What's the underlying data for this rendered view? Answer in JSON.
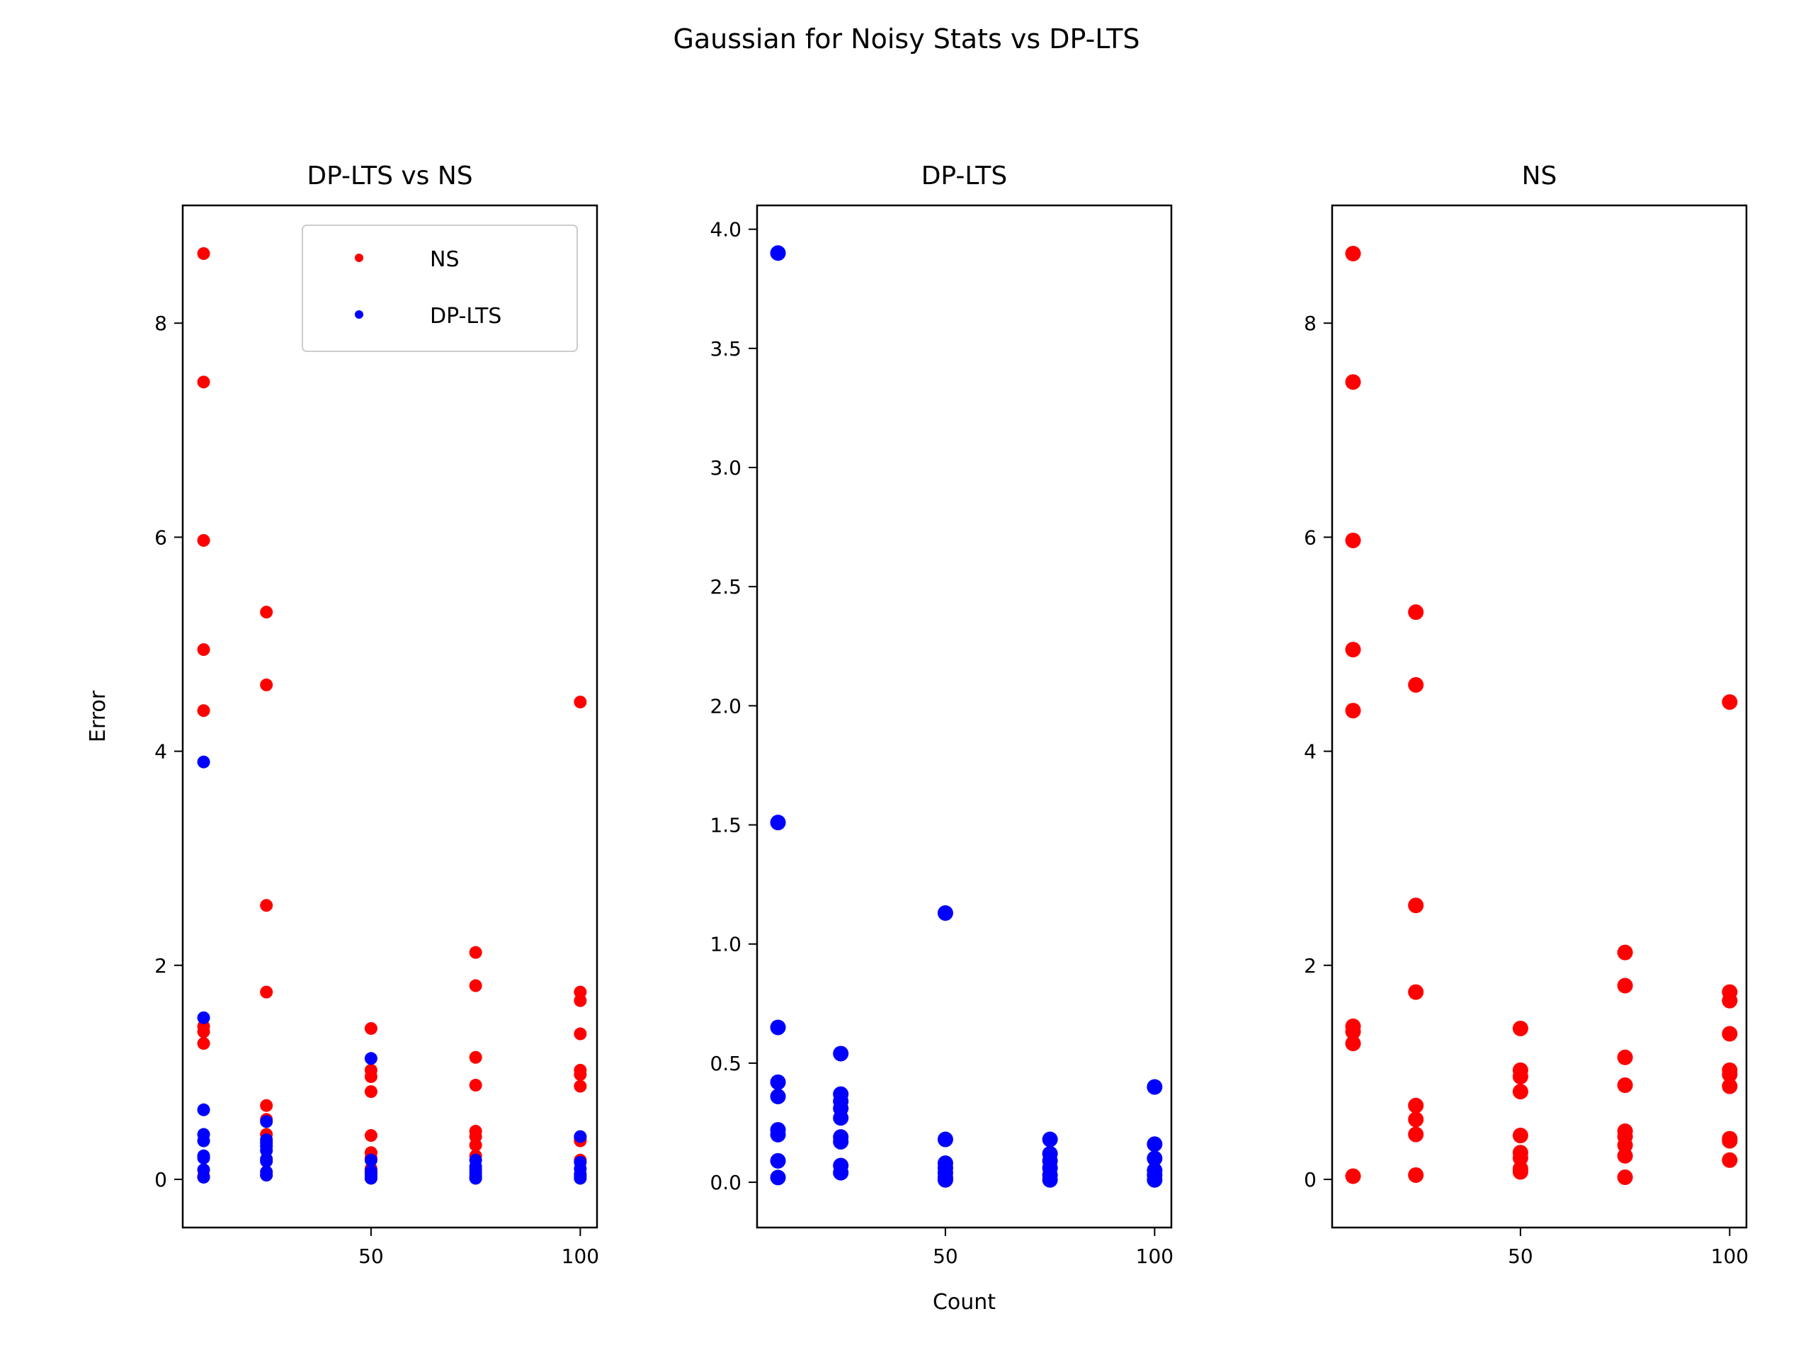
{
  "suptitle": "Gaussian for Noisy Stats vs DP-LTS",
  "colors": {
    "ns": "#ff0000",
    "dplts": "#0000ff"
  },
  "chart_data": [
    {
      "type": "scatter",
      "title": "DP-LTS vs NS",
      "xlabel": "",
      "ylabel": "Error",
      "xlim": [
        5,
        104
      ],
      "ylim": [
        -0.45,
        9.1
      ],
      "xticks": [
        50,
        100
      ],
      "yticks": [
        0,
        2,
        4,
        6,
        8
      ],
      "legend": {
        "position": "top-right",
        "entries": [
          "NS",
          "DP-LTS"
        ]
      },
      "series": [
        {
          "name": "NS",
          "color": "#ff0000",
          "points": [
            [
              10,
              8.65
            ],
            [
              10,
              7.45
            ],
            [
              10,
              5.97
            ],
            [
              10,
              4.95
            ],
            [
              10,
              4.38
            ],
            [
              10,
              1.43
            ],
            [
              10,
              1.38
            ],
            [
              10,
              1.27
            ],
            [
              10,
              0.03
            ],
            [
              25,
              5.3
            ],
            [
              25,
              4.62
            ],
            [
              25,
              2.56
            ],
            [
              25,
              1.75
            ],
            [
              25,
              0.69
            ],
            [
              25,
              0.56
            ],
            [
              25,
              0.42
            ],
            [
              25,
              0.04
            ],
            [
              50,
              1.41
            ],
            [
              50,
              1.02
            ],
            [
              50,
              0.96
            ],
            [
              50,
              0.82
            ],
            [
              50,
              0.41
            ],
            [
              50,
              0.25
            ],
            [
              50,
              0.2
            ],
            [
              50,
              0.1
            ],
            [
              50,
              0.07
            ],
            [
              75,
              2.12
            ],
            [
              75,
              1.81
            ],
            [
              75,
              1.14
            ],
            [
              75,
              0.88
            ],
            [
              75,
              0.45
            ],
            [
              75,
              0.4
            ],
            [
              75,
              0.32
            ],
            [
              75,
              0.22
            ],
            [
              75,
              0.02
            ],
            [
              100,
              4.46
            ],
            [
              100,
              1.75
            ],
            [
              100,
              1.67
            ],
            [
              100,
              1.36
            ],
            [
              100,
              1.02
            ],
            [
              100,
              0.98
            ],
            [
              100,
              0.87
            ],
            [
              100,
              0.38
            ],
            [
              100,
              0.36
            ],
            [
              100,
              0.18
            ]
          ]
        },
        {
          "name": "DP-LTS",
          "color": "#0000ff",
          "points": [
            [
              10,
              3.9
            ],
            [
              10,
              1.51
            ],
            [
              10,
              0.65
            ],
            [
              10,
              0.42
            ],
            [
              10,
              0.36
            ],
            [
              10,
              0.22
            ],
            [
              10,
              0.2
            ],
            [
              10,
              0.09
            ],
            [
              10,
              0.02
            ],
            [
              25,
              0.54
            ],
            [
              25,
              0.37
            ],
            [
              25,
              0.34
            ],
            [
              25,
              0.31
            ],
            [
              25,
              0.27
            ],
            [
              25,
              0.19
            ],
            [
              25,
              0.17
            ],
            [
              25,
              0.07
            ],
            [
              25,
              0.04
            ],
            [
              50,
              1.13
            ],
            [
              50,
              0.18
            ],
            [
              50,
              0.08
            ],
            [
              50,
              0.06
            ],
            [
              50,
              0.04
            ],
            [
              50,
              0.02
            ],
            [
              50,
              0.01
            ],
            [
              75,
              0.18
            ],
            [
              75,
              0.12
            ],
            [
              75,
              0.09
            ],
            [
              75,
              0.06
            ],
            [
              75,
              0.03
            ],
            [
              75,
              0.01
            ],
            [
              100,
              0.4
            ],
            [
              100,
              0.16
            ],
            [
              100,
              0.1
            ],
            [
              100,
              0.05
            ],
            [
              100,
              0.03
            ],
            [
              100,
              0.01
            ]
          ]
        }
      ]
    },
    {
      "type": "scatter",
      "title": "DP-LTS",
      "xlabel": "Count",
      "ylabel": "",
      "xlim": [
        5,
        104
      ],
      "ylim": [
        -0.19,
        4.1
      ],
      "xticks": [
        50,
        100
      ],
      "yticks": [
        0.0,
        0.5,
        1.0,
        1.5,
        2.0,
        2.5,
        3.0,
        3.5,
        4.0
      ],
      "series": [
        {
          "name": "",
          "color": "#0000ff",
          "points": [
            [
              10,
              3.9
            ],
            [
              10,
              1.51
            ],
            [
              10,
              0.65
            ],
            [
              10,
              0.42
            ],
            [
              10,
              0.36
            ],
            [
              10,
              0.22
            ],
            [
              10,
              0.2
            ],
            [
              10,
              0.09
            ],
            [
              10,
              0.02
            ],
            [
              25,
              0.54
            ],
            [
              25,
              0.37
            ],
            [
              25,
              0.34
            ],
            [
              25,
              0.31
            ],
            [
              25,
              0.27
            ],
            [
              25,
              0.19
            ],
            [
              25,
              0.17
            ],
            [
              25,
              0.07
            ],
            [
              25,
              0.04
            ],
            [
              50,
              1.13
            ],
            [
              50,
              0.18
            ],
            [
              50,
              0.08
            ],
            [
              50,
              0.06
            ],
            [
              50,
              0.04
            ],
            [
              50,
              0.02
            ],
            [
              50,
              0.01
            ],
            [
              75,
              0.18
            ],
            [
              75,
              0.12
            ],
            [
              75,
              0.09
            ],
            [
              75,
              0.06
            ],
            [
              75,
              0.03
            ],
            [
              75,
              0.01
            ],
            [
              100,
              0.4
            ],
            [
              100,
              0.16
            ],
            [
              100,
              0.1
            ],
            [
              100,
              0.05
            ],
            [
              100,
              0.03
            ],
            [
              100,
              0.01
            ]
          ]
        }
      ]
    },
    {
      "type": "scatter",
      "title": "NS",
      "xlabel": "",
      "ylabel": "",
      "xlim": [
        5,
        104
      ],
      "ylim": [
        -0.45,
        9.1
      ],
      "xticks": [
        50,
        100
      ],
      "yticks": [
        0,
        2,
        4,
        6,
        8
      ],
      "series": [
        {
          "name": "",
          "color": "#ff0000",
          "points": [
            [
              10,
              8.65
            ],
            [
              10,
              7.45
            ],
            [
              10,
              5.97
            ],
            [
              10,
              4.95
            ],
            [
              10,
              4.38
            ],
            [
              10,
              1.43
            ],
            [
              10,
              1.38
            ],
            [
              10,
              1.27
            ],
            [
              10,
              0.03
            ],
            [
              25,
              5.3
            ],
            [
              25,
              4.62
            ],
            [
              25,
              2.56
            ],
            [
              25,
              1.75
            ],
            [
              25,
              0.69
            ],
            [
              25,
              0.56
            ],
            [
              25,
              0.42
            ],
            [
              25,
              0.04
            ],
            [
              50,
              1.41
            ],
            [
              50,
              1.02
            ],
            [
              50,
              0.96
            ],
            [
              50,
              0.82
            ],
            [
              50,
              0.41
            ],
            [
              50,
              0.25
            ],
            [
              50,
              0.2
            ],
            [
              50,
              0.1
            ],
            [
              50,
              0.07
            ],
            [
              75,
              2.12
            ],
            [
              75,
              1.81
            ],
            [
              75,
              1.14
            ],
            [
              75,
              0.88
            ],
            [
              75,
              0.45
            ],
            [
              75,
              0.4
            ],
            [
              75,
              0.32
            ],
            [
              75,
              0.22
            ],
            [
              75,
              0.02
            ],
            [
              100,
              4.46
            ],
            [
              100,
              1.75
            ],
            [
              100,
              1.67
            ],
            [
              100,
              1.36
            ],
            [
              100,
              1.02
            ],
            [
              100,
              0.98
            ],
            [
              100,
              0.87
            ],
            [
              100,
              0.38
            ],
            [
              100,
              0.36
            ],
            [
              100,
              0.18
            ]
          ]
        }
      ]
    }
  ]
}
